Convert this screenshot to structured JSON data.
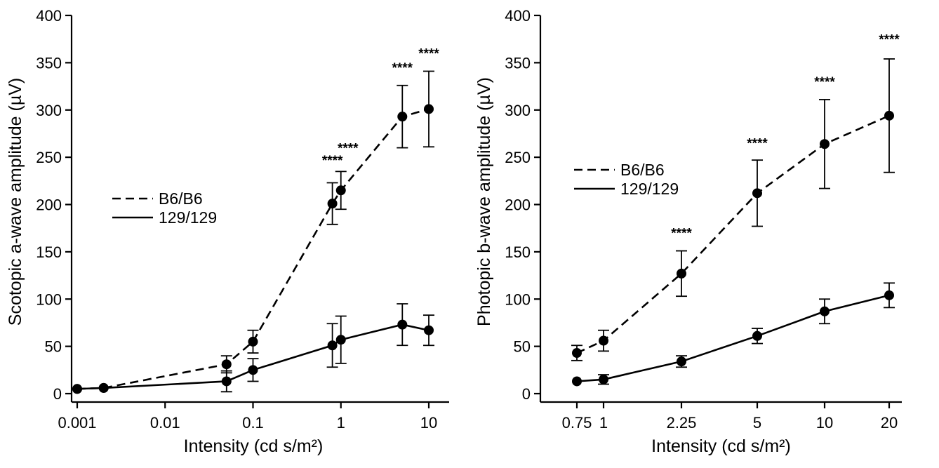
{
  "chart_data": [
    {
      "type": "line",
      "xlabel": "Intensity (cd s/m²)",
      "ylabel": "Scotopic a-wave amplitude (µV)",
      "x_scale": "log",
      "xlim": [
        0.001,
        20
      ],
      "ylim": [
        0,
        400
      ],
      "x_ticks": [
        0.001,
        0.01,
        0.1,
        1,
        10
      ],
      "x_tick_labels": [
        "0.001",
        "0.01",
        "0.1",
        "1",
        "10"
      ],
      "y_ticks": [
        0,
        50,
        100,
        150,
        200,
        250,
        300,
        350,
        400
      ],
      "y_tick_labels": [
        "0",
        "50",
        "100",
        "150",
        "200",
        "250",
        "300",
        "350",
        "400"
      ],
      "legend_position": "middle-left",
      "series": [
        {
          "name": "B6/B6",
          "style": "dashed",
          "points": [
            {
              "x": 0.001,
              "y": 5,
              "err": 0
            },
            {
              "x": 0.002,
              "y": 6,
              "err": 0
            },
            {
              "x": 0.05,
              "y": 31,
              "err": 9
            },
            {
              "x": 0.1,
              "y": 55,
              "err": 12
            },
            {
              "x": 0.8,
              "y": 201,
              "err": 22
            },
            {
              "x": 1,
              "y": 215,
              "err": 20
            },
            {
              "x": 5,
              "y": 293,
              "err": 33
            },
            {
              "x": 10,
              "y": 301,
              "err": 40
            }
          ]
        },
        {
          "name": "129/129",
          "style": "solid",
          "points": [
            {
              "x": 0.001,
              "y": 5,
              "err": 0
            },
            {
              "x": 0.002,
              "y": 6,
              "err": 0
            },
            {
              "x": 0.05,
              "y": 13,
              "err": 11
            },
            {
              "x": 0.1,
              "y": 25,
              "err": 12
            },
            {
              "x": 0.8,
              "y": 51,
              "err": 23
            },
            {
              "x": 1,
              "y": 57,
              "err": 25
            },
            {
              "x": 5,
              "y": 73,
              "err": 22
            },
            {
              "x": 10,
              "y": 67,
              "err": 16
            }
          ]
        }
      ],
      "annotations": [
        {
          "text": "****",
          "x": 0.8,
          "y": 242
        },
        {
          "text": "****",
          "x": 1,
          "y": 255
        },
        {
          "text": "****",
          "x": 5,
          "y": 340
        },
        {
          "text": "****",
          "x": 10,
          "y": 355
        }
      ]
    },
    {
      "type": "line",
      "xlabel": "Intensity (cd s/m²)",
      "ylabel": "Photopic b-wave amplitude (µV)",
      "x_scale": "categorical",
      "xlim": [
        0,
        5.8
      ],
      "ylim": [
        0,
        400
      ],
      "x_ticks": [
        0,
        0.5,
        1.9,
        3.0,
        4.1,
        5.2
      ],
      "x_tick_labels": [
        "0.75",
        "1",
        "2.25",
        "5",
        "10",
        "20"
      ],
      "y_ticks": [
        0,
        50,
        100,
        150,
        200,
        250,
        300,
        350,
        400
      ],
      "y_tick_labels": [
        "0",
        "50",
        "100",
        "150",
        "200",
        "250",
        "300",
        "350",
        "400"
      ],
      "legend_position": "upper-left",
      "series": [
        {
          "name": "B6/B6",
          "style": "dashed",
          "points": [
            {
              "x": 0,
              "y": 43,
              "err": 8
            },
            {
              "x": 0.5,
              "y": 56,
              "err": 11
            },
            {
              "x": 1.9,
              "y": 127,
              "err": 24
            },
            {
              "x": 3.0,
              "y": 212,
              "err": 35
            },
            {
              "x": 4.1,
              "y": 264,
              "err": 47
            },
            {
              "x": 5.2,
              "y": 294,
              "err": 60
            }
          ]
        },
        {
          "name": "129/129",
          "style": "solid",
          "points": [
            {
              "x": 0,
              "y": 13,
              "err": 0
            },
            {
              "x": 0.5,
              "y": 15,
              "err": 5
            },
            {
              "x": 1.9,
              "y": 34,
              "err": 6
            },
            {
              "x": 3.0,
              "y": 61,
              "err": 8
            },
            {
              "x": 4.1,
              "y": 87,
              "err": 13
            },
            {
              "x": 5.2,
              "y": 104,
              "err": 13
            }
          ]
        }
      ],
      "annotations": [
        {
          "text": "****",
          "x": 1.9,
          "y": 165
        },
        {
          "text": "****",
          "x": 3.0,
          "y": 260
        },
        {
          "text": "****",
          "x": 4.1,
          "y": 325
        },
        {
          "text": "****",
          "x": 5.2,
          "y": 370
        }
      ]
    }
  ]
}
